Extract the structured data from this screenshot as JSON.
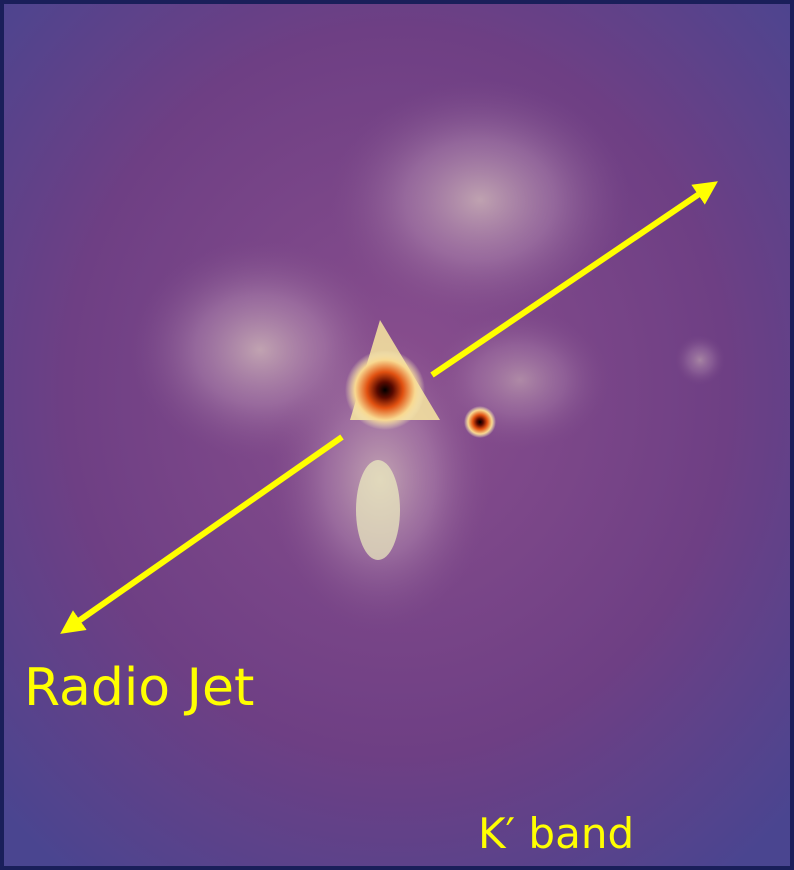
{
  "labels": {
    "jet": "Radio Jet",
    "band": "K′ band"
  }
}
